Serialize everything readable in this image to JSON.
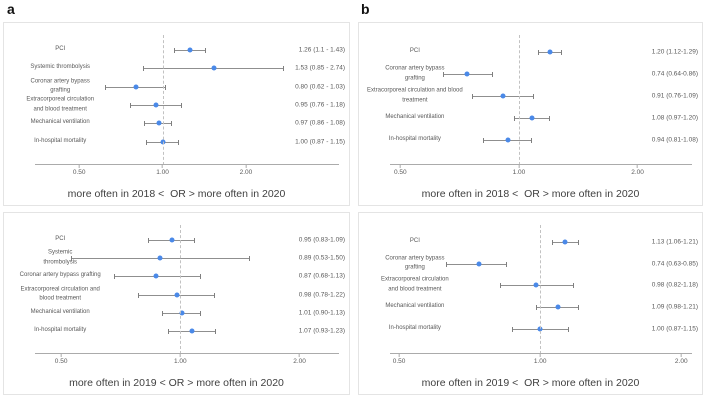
{
  "figure": {
    "panel_letters": {
      "a": "a",
      "b": "b"
    }
  },
  "colors": {
    "dot": "#4a89e8",
    "ci_line": "#8f8f8f",
    "reference_dashed": "#c2c2c2",
    "axis": "#ababab",
    "text": "#595959",
    "xlabel_text": "#3f3f3f",
    "panel_border": "#e4e4e4"
  },
  "chart_data": [
    {
      "type": "scatter",
      "subtype": "forest-plot",
      "panel": "a-top",
      "xscale": "log",
      "xlim": [
        0.4,
        4.2
      ],
      "refline": 1.0,
      "grid": false,
      "ticks": [
        {
          "value": 0.5,
          "label": "0.50"
        },
        {
          "value": 1.0,
          "label": "1.00"
        },
        {
          "value": 2.0,
          "label": "2.00"
        }
      ],
      "xlabel": "more often in 2018 <  OR > more often in 2020",
      "rows": [
        {
          "label": "PCI",
          "or": 1.26,
          "ci_low": 1.1,
          "ci_high": 1.43,
          "value_text": "1.26 (1.1 - 1.43)"
        },
        {
          "label": "Systemic thrombolysis",
          "or": 1.53,
          "ci_low": 0.85,
          "ci_high": 2.74,
          "value_text": "1.53 (0.85 - 2.74)"
        },
        {
          "label": "Coronar artery bypass\ngrafting",
          "or": 0.8,
          "ci_low": 0.62,
          "ci_high": 1.03,
          "value_text": "0.80 (0.62 - 1.03)"
        },
        {
          "label": "Extracorporeal circulation\nand blood treatment",
          "or": 0.95,
          "ci_low": 0.76,
          "ci_high": 1.18,
          "value_text": "0.95 (0.76 - 1.18)"
        },
        {
          "label": "Mechanical ventilation",
          "or": 0.97,
          "ci_low": 0.86,
          "ci_high": 1.08,
          "value_text": "0.97 (0.86 - 1.08)"
        },
        {
          "label": "In-hospital mortality",
          "or": 1.0,
          "ci_low": 0.87,
          "ci_high": 1.15,
          "value_text": "1.00 (0.87 - 1.15)"
        }
      ]
    },
    {
      "type": "scatter",
      "subtype": "forest-plot",
      "panel": "b-top",
      "xscale": "log",
      "xlim": [
        0.52,
        2.69
      ],
      "refline": 1.0,
      "grid": false,
      "ticks": [
        {
          "value": 0.5,
          "label": "0.50"
        },
        {
          "value": 1.0,
          "label": "1.00"
        },
        {
          "value": 2.0,
          "label": "2.00"
        }
      ],
      "xlabel": "more often in 2018 <  OR > more often in 2020",
      "rows": [
        {
          "label": "PCI",
          "or": 1.2,
          "ci_low": 1.12,
          "ci_high": 1.29,
          "value_text": "1.20 (1.12-1.29)"
        },
        {
          "label": "Coronar artery bypass\ngrafting",
          "or": 0.74,
          "ci_low": 0.64,
          "ci_high": 0.86,
          "value_text": "0.74 (0.64-0.86)"
        },
        {
          "label": "Extracorporeal circulation and blood\ntreatment",
          "or": 0.91,
          "ci_low": 0.76,
          "ci_high": 1.09,
          "value_text": "0.91 (0.76-1.09)"
        },
        {
          "label": "Mechanical ventilation",
          "or": 1.08,
          "ci_low": 0.97,
          "ci_high": 1.2,
          "value_text": "1.08 (0.97-1.20)"
        },
        {
          "label": "In-hospital mortality",
          "or": 0.94,
          "ci_low": 0.81,
          "ci_high": 1.08,
          "value_text": "0.94 (0.81-1.08)"
        }
      ]
    },
    {
      "type": "scatter",
      "subtype": "forest-plot",
      "panel": "a-bottom",
      "xscale": "log",
      "xlim": [
        0.475,
        2.46
      ],
      "refline": 1.0,
      "grid": false,
      "ticks": [
        {
          "value": 0.5,
          "label": "0.50"
        },
        {
          "value": 1.0,
          "label": "1.00"
        },
        {
          "value": 2.0,
          "label": "2.00"
        }
      ],
      "xlabel": "more often in 2019 < OR > more often in 2020",
      "rows": [
        {
          "label": "PCI",
          "or": 0.95,
          "ci_low": 0.83,
          "ci_high": 1.09,
          "value_text": "0.95 (0.83-1.09)"
        },
        {
          "label": "Systemic\nthrombolysis",
          "or": 0.89,
          "ci_low": 0.53,
          "ci_high": 1.5,
          "value_text": "0.89 (0.53-1.50)"
        },
        {
          "label": "Coronar artery bypass grafting",
          "or": 0.87,
          "ci_low": 0.68,
          "ci_high": 1.13,
          "value_text": "0.87 (0.68-1.13)"
        },
        {
          "label": "Extracorporeal circulation and\nblood treatment",
          "or": 0.98,
          "ci_low": 0.78,
          "ci_high": 1.22,
          "value_text": "0.98 (0.78-1.22)"
        },
        {
          "label": "Mechanical ventilation",
          "or": 1.01,
          "ci_low": 0.9,
          "ci_high": 1.13,
          "value_text": "1.01 (0.90-1.13)"
        },
        {
          "label": "In-hospital mortality",
          "or": 1.07,
          "ci_low": 0.93,
          "ci_high": 1.23,
          "value_text": "1.07 (0.93-1.23)"
        }
      ]
    },
    {
      "type": "scatter",
      "subtype": "forest-plot",
      "panel": "b-bottom",
      "xscale": "log",
      "xlim": [
        0.52,
        2.07
      ],
      "refline": 1.0,
      "grid": false,
      "ticks": [
        {
          "value": 0.5,
          "label": "0.50"
        },
        {
          "value": 1.0,
          "label": "1.00"
        },
        {
          "value": 2.0,
          "label": "2.00"
        }
      ],
      "xlabel": "more often in 2019 <  OR > more often in 2020",
      "rows": [
        {
          "label": "PCI",
          "or": 1.13,
          "ci_low": 1.06,
          "ci_high": 1.21,
          "value_text": "1.13 (1.06-1.21)"
        },
        {
          "label": "Coronar artery bypass\ngrafting",
          "or": 0.74,
          "ci_low": 0.63,
          "ci_high": 0.85,
          "value_text": "0.74 (0.63-0.85)"
        },
        {
          "label": "Extracorporeal circulation\nand blood treatment",
          "or": 0.98,
          "ci_low": 0.82,
          "ci_high": 1.18,
          "value_text": "0.98 (0.82-1.18)"
        },
        {
          "label": "Mechanical ventilation",
          "or": 1.09,
          "ci_low": 0.98,
          "ci_high": 1.21,
          "value_text": "1.09 (0.98-1.21)"
        },
        {
          "label": "In-hospital mortality",
          "or": 1.0,
          "ci_low": 0.87,
          "ci_high": 1.15,
          "value_text": "1.00 (0.87-1.15)"
        }
      ]
    }
  ]
}
